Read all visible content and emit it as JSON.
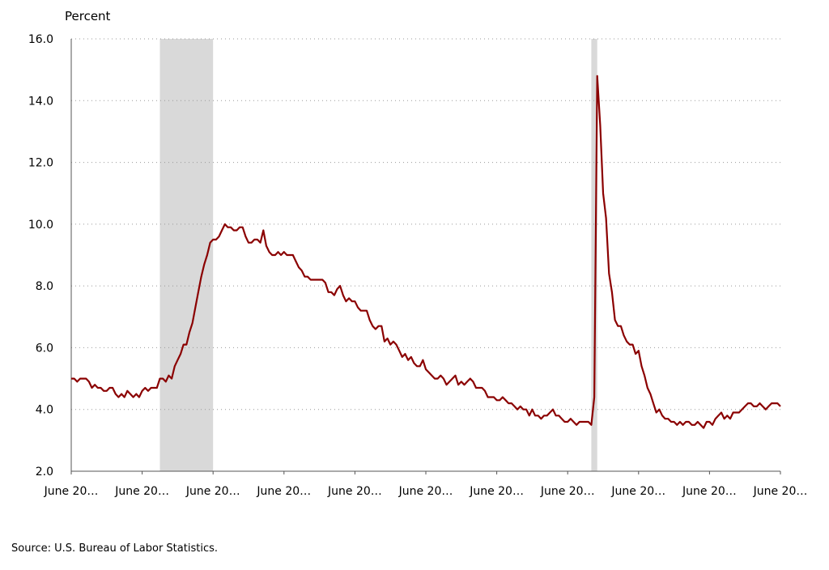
{
  "chart_data": {
    "type": "line",
    "ylabel": "Percent",
    "ylim": [
      2.0,
      16.0
    ],
    "yticks": [
      "2.0",
      "4.0",
      "6.0",
      "8.0",
      "10.0",
      "12.0",
      "14.0",
      "16.0"
    ],
    "xticks": [
      "June 20…",
      "June 20…",
      "June 20…",
      "June 20…",
      "June 20…",
      "June 20…",
      "June 20…",
      "June 20…",
      "June 20…",
      "June 20…",
      "June 20…"
    ],
    "xlim": [
      0,
      240
    ],
    "grid": true,
    "recessions": [
      [
        30,
        48
      ],
      [
        176,
        178
      ]
    ],
    "series": [
      {
        "color": "#8b0000",
        "points": [
          [
            0,
            5.0
          ],
          [
            1,
            5.0
          ],
          [
            2,
            4.9
          ],
          [
            3,
            5.0
          ],
          [
            4,
            5.0
          ],
          [
            5,
            5.0
          ],
          [
            6,
            4.9
          ],
          [
            7,
            4.7
          ],
          [
            8,
            4.8
          ],
          [
            9,
            4.7
          ],
          [
            10,
            4.7
          ],
          [
            11,
            4.6
          ],
          [
            12,
            4.6
          ],
          [
            13,
            4.7
          ],
          [
            14,
            4.7
          ],
          [
            15,
            4.5
          ],
          [
            16,
            4.4
          ],
          [
            17,
            4.5
          ],
          [
            18,
            4.4
          ],
          [
            19,
            4.6
          ],
          [
            20,
            4.5
          ],
          [
            21,
            4.4
          ],
          [
            22,
            4.5
          ],
          [
            23,
            4.4
          ],
          [
            24,
            4.6
          ],
          [
            25,
            4.7
          ],
          [
            26,
            4.6
          ],
          [
            27,
            4.7
          ],
          [
            28,
            4.7
          ],
          [
            29,
            4.7
          ],
          [
            30,
            5.0
          ],
          [
            31,
            5.0
          ],
          [
            32,
            4.9
          ],
          [
            33,
            5.1
          ],
          [
            34,
            5.0
          ],
          [
            35,
            5.4
          ],
          [
            36,
            5.6
          ],
          [
            37,
            5.8
          ],
          [
            38,
            6.1
          ],
          [
            39,
            6.1
          ],
          [
            40,
            6.5
          ],
          [
            41,
            6.8
          ],
          [
            42,
            7.3
          ],
          [
            43,
            7.8
          ],
          [
            44,
            8.3
          ],
          [
            45,
            8.7
          ],
          [
            46,
            9.0
          ],
          [
            47,
            9.4
          ],
          [
            48,
            9.5
          ],
          [
            49,
            9.5
          ],
          [
            50,
            9.6
          ],
          [
            51,
            9.8
          ],
          [
            52,
            10.0
          ],
          [
            53,
            9.9
          ],
          [
            54,
            9.9
          ],
          [
            55,
            9.8
          ],
          [
            56,
            9.8
          ],
          [
            57,
            9.9
          ],
          [
            58,
            9.9
          ],
          [
            59,
            9.6
          ],
          [
            60,
            9.4
          ],
          [
            61,
            9.4
          ],
          [
            62,
            9.5
          ],
          [
            63,
            9.5
          ],
          [
            64,
            9.4
          ],
          [
            65,
            9.8
          ],
          [
            66,
            9.3
          ],
          [
            67,
            9.1
          ],
          [
            68,
            9.0
          ],
          [
            69,
            9.0
          ],
          [
            70,
            9.1
          ],
          [
            71,
            9.0
          ],
          [
            72,
            9.1
          ],
          [
            73,
            9.0
          ],
          [
            74,
            9.0
          ],
          [
            75,
            9.0
          ],
          [
            76,
            8.8
          ],
          [
            77,
            8.6
          ],
          [
            78,
            8.5
          ],
          [
            79,
            8.3
          ],
          [
            80,
            8.3
          ],
          [
            81,
            8.2
          ],
          [
            82,
            8.2
          ],
          [
            83,
            8.2
          ],
          [
            84,
            8.2
          ],
          [
            85,
            8.2
          ],
          [
            86,
            8.1
          ],
          [
            87,
            7.8
          ],
          [
            88,
            7.8
          ],
          [
            89,
            7.7
          ],
          [
            90,
            7.9
          ],
          [
            91,
            8.0
          ],
          [
            92,
            7.7
          ],
          [
            93,
            7.5
          ],
          [
            94,
            7.6
          ],
          [
            95,
            7.5
          ],
          [
            96,
            7.5
          ],
          [
            97,
            7.3
          ],
          [
            98,
            7.2
          ],
          [
            99,
            7.2
          ],
          [
            100,
            7.2
          ],
          [
            101,
            6.9
          ],
          [
            102,
            6.7
          ],
          [
            103,
            6.6
          ],
          [
            104,
            6.7
          ],
          [
            105,
            6.7
          ],
          [
            106,
            6.2
          ],
          [
            107,
            6.3
          ],
          [
            108,
            6.1
          ],
          [
            109,
            6.2
          ],
          [
            110,
            6.1
          ],
          [
            111,
            5.9
          ],
          [
            112,
            5.7
          ],
          [
            113,
            5.8
          ],
          [
            114,
            5.6
          ],
          [
            115,
            5.7
          ],
          [
            116,
            5.5
          ],
          [
            117,
            5.4
          ],
          [
            118,
            5.4
          ],
          [
            119,
            5.6
          ],
          [
            120,
            5.3
          ],
          [
            121,
            5.2
          ],
          [
            122,
            5.1
          ],
          [
            123,
            5.0
          ],
          [
            124,
            5.0
          ],
          [
            125,
            5.1
          ],
          [
            126,
            5.0
          ],
          [
            127,
            4.8
          ],
          [
            128,
            4.9
          ],
          [
            129,
            5.0
          ],
          [
            130,
            5.1
          ],
          [
            131,
            4.8
          ],
          [
            132,
            4.9
          ],
          [
            133,
            4.8
          ],
          [
            134,
            4.9
          ],
          [
            135,
            5.0
          ],
          [
            136,
            4.9
          ],
          [
            137,
            4.7
          ],
          [
            138,
            4.7
          ],
          [
            139,
            4.7
          ],
          [
            140,
            4.6
          ],
          [
            141,
            4.4
          ],
          [
            142,
            4.4
          ],
          [
            143,
            4.4
          ],
          [
            144,
            4.3
          ],
          [
            145,
            4.3
          ],
          [
            146,
            4.4
          ],
          [
            147,
            4.3
          ],
          [
            148,
            4.2
          ],
          [
            149,
            4.2
          ],
          [
            150,
            4.1
          ],
          [
            151,
            4.0
          ],
          [
            152,
            4.1
          ],
          [
            153,
            4.0
          ],
          [
            154,
            4.0
          ],
          [
            155,
            3.8
          ],
          [
            156,
            4.0
          ],
          [
            157,
            3.8
          ],
          [
            158,
            3.8
          ],
          [
            159,
            3.7
          ],
          [
            160,
            3.8
          ],
          [
            161,
            3.8
          ],
          [
            162,
            3.9
          ],
          [
            163,
            4.0
          ],
          [
            164,
            3.8
          ],
          [
            165,
            3.8
          ],
          [
            166,
            3.7
          ],
          [
            167,
            3.6
          ],
          [
            168,
            3.6
          ],
          [
            169,
            3.7
          ],
          [
            170,
            3.6
          ],
          [
            171,
            3.5
          ],
          [
            172,
            3.6
          ],
          [
            173,
            3.6
          ],
          [
            174,
            3.6
          ],
          [
            175,
            3.6
          ],
          [
            176,
            3.5
          ],
          [
            177,
            4.4
          ],
          [
            178,
            14.8
          ],
          [
            179,
            13.2
          ],
          [
            180,
            11.0
          ],
          [
            181,
            10.2
          ],
          [
            182,
            8.4
          ],
          [
            183,
            7.8
          ],
          [
            184,
            6.9
          ],
          [
            185,
            6.7
          ],
          [
            186,
            6.7
          ],
          [
            187,
            6.4
          ],
          [
            188,
            6.2
          ],
          [
            189,
            6.1
          ],
          [
            190,
            6.1
          ],
          [
            191,
            5.8
          ],
          [
            192,
            5.9
          ],
          [
            193,
            5.4
          ],
          [
            194,
            5.1
          ],
          [
            195,
            4.7
          ],
          [
            196,
            4.5
          ],
          [
            197,
            4.2
          ],
          [
            198,
            3.9
          ],
          [
            199,
            4.0
          ],
          [
            200,
            3.8
          ],
          [
            201,
            3.7
          ],
          [
            202,
            3.7
          ],
          [
            203,
            3.6
          ],
          [
            204,
            3.6
          ],
          [
            205,
            3.5
          ],
          [
            206,
            3.6
          ],
          [
            207,
            3.5
          ],
          [
            208,
            3.6
          ],
          [
            209,
            3.6
          ],
          [
            210,
            3.5
          ],
          [
            211,
            3.5
          ],
          [
            212,
            3.6
          ],
          [
            213,
            3.5
          ],
          [
            214,
            3.4
          ],
          [
            215,
            3.6
          ],
          [
            216,
            3.6
          ],
          [
            217,
            3.5
          ],
          [
            218,
            3.7
          ],
          [
            219,
            3.8
          ],
          [
            220,
            3.9
          ],
          [
            221,
            3.7
          ],
          [
            222,
            3.8
          ],
          [
            223,
            3.7
          ],
          [
            224,
            3.9
          ],
          [
            225,
            3.9
          ],
          [
            226,
            3.9
          ],
          [
            227,
            4.0
          ],
          [
            228,
            4.1
          ],
          [
            229,
            4.2
          ],
          [
            230,
            4.2
          ],
          [
            231,
            4.1
          ],
          [
            232,
            4.1
          ],
          [
            233,
            4.2
          ],
          [
            234,
            4.1
          ],
          [
            235,
            4.0
          ],
          [
            236,
            4.1
          ],
          [
            237,
            4.2
          ],
          [
            238,
            4.2
          ],
          [
            239,
            4.2
          ],
          [
            240,
            4.1
          ]
        ]
      }
    ]
  },
  "footer": {
    "source": "Source: U.S. Bureau of Labor Statistics."
  }
}
